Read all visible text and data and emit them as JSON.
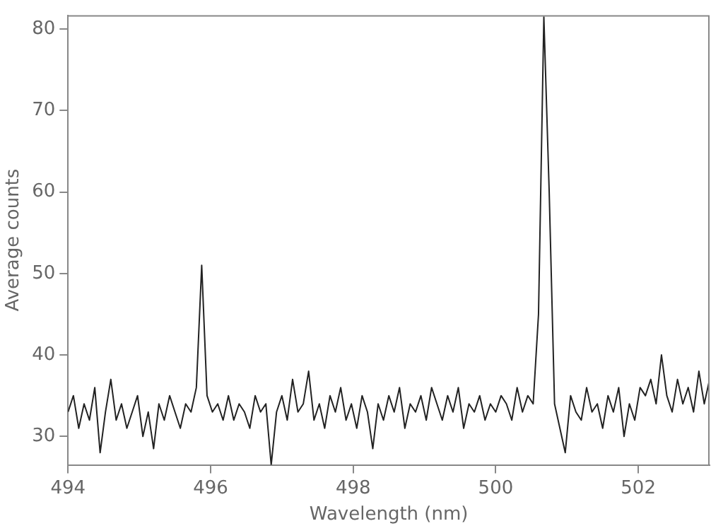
{
  "chart_data": {
    "type": "line",
    "xlabel": "Wavelength (nm)",
    "ylabel": "Average counts",
    "x": [
      494,
      494.075,
      494.15,
      494.225,
      494.3,
      494.375,
      494.45,
      494.525,
      494.6,
      494.675,
      494.75,
      494.825,
      494.9,
      494.975,
      495.05,
      495.125,
      495.2,
      495.275,
      495.35,
      495.425,
      495.5,
      495.575,
      495.65,
      495.725,
      495.8,
      495.875,
      495.95,
      496.025,
      496.1,
      496.175,
      496.25,
      496.325,
      496.4,
      496.475,
      496.55,
      496.625,
      496.7,
      496.775,
      496.85,
      496.925,
      497,
      497.075,
      497.15,
      497.225,
      497.3,
      497.375,
      497.45,
      497.525,
      497.6,
      497.675,
      497.75,
      497.825,
      497.9,
      497.975,
      498.05,
      498.125,
      498.2,
      498.275,
      498.35,
      498.425,
      498.5,
      498.575,
      498.65,
      498.725,
      498.8,
      498.875,
      498.95,
      499.025,
      499.1,
      499.175,
      499.25,
      499.325,
      499.4,
      499.475,
      499.55,
      499.625,
      499.7,
      499.775,
      499.85,
      499.925,
      500,
      500.075,
      500.15,
      500.225,
      500.3,
      500.375,
      500.45,
      500.525,
      500.6,
      500.675,
      500.75,
      500.825,
      500.9,
      500.975,
      501.05,
      501.125,
      501.2,
      501.275,
      501.35,
      501.425,
      501.5,
      501.575,
      501.65,
      501.725,
      501.8,
      501.875,
      501.95,
      502.025,
      502.1,
      502.175,
      502.25,
      502.325,
      502.4,
      502.475,
      502.55,
      502.625,
      502.7,
      502.775,
      502.85,
      502.925,
      503
    ],
    "series": [
      {
        "color": "#222222",
        "values": [
          33,
          35,
          31,
          34,
          32,
          36,
          28,
          33,
          37,
          32,
          34,
          31,
          33,
          35,
          30,
          33,
          28.5,
          34,
          32,
          35,
          33,
          31,
          34,
          33,
          36,
          51,
          35,
          33,
          34,
          32,
          35,
          32,
          34,
          33,
          31,
          35,
          33,
          34,
          26.5,
          33,
          35,
          32,
          37,
          33,
          34,
          38,
          32,
          34,
          31,
          35,
          33,
          36,
          32,
          34,
          31,
          35,
          33,
          28.5,
          34,
          32,
          35,
          33,
          36,
          31,
          34,
          33,
          35,
          32,
          36,
          34,
          32,
          35,
          33,
          36,
          31,
          34,
          33,
          35,
          32,
          34,
          33,
          35,
          34,
          32,
          36,
          33,
          35,
          34,
          45,
          81.5,
          60,
          34,
          31,
          28,
          35,
          33,
          32,
          36,
          33,
          34,
          31,
          35,
          33,
          36,
          30,
          34,
          32,
          36,
          35,
          37,
          34,
          40,
          35,
          33,
          37,
          34,
          36,
          33,
          38,
          34,
          37
        ]
      }
    ],
    "xlim": [
      494,
      503
    ],
    "ylim": [
      26.5,
      81.7
    ],
    "xticks": [
      494,
      496,
      498,
      500,
      502
    ],
    "yticks": [
      30,
      40,
      50,
      60,
      70,
      80
    ],
    "grid": false,
    "legend": false,
    "marker": "none",
    "line_style": "solid"
  }
}
